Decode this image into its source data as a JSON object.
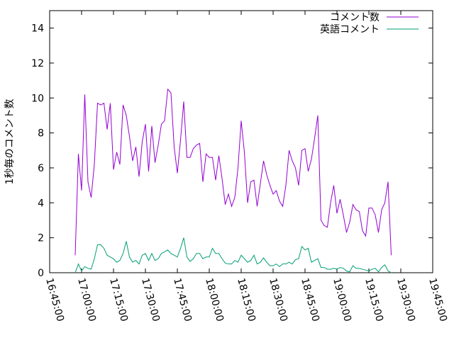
{
  "chart_data": {
    "type": "line",
    "title": "",
    "xlabel": "",
    "ylabel": "1秒毎のコメント数",
    "ylim": [
      0,
      15
    ],
    "yticks": [
      0,
      2,
      4,
      6,
      8,
      10,
      12,
      14
    ],
    "xlim": [
      "16:45:00",
      "19:45:00"
    ],
    "xticks": [
      "16:45:00",
      "17:00:00",
      "17:15:00",
      "17:30:00",
      "17:45:00",
      "18:00:00",
      "18:15:00",
      "18:30:00",
      "18:45:00",
      "19:00:00",
      "19:15:00",
      "19:30:00",
      "19:45:00"
    ],
    "grid": false,
    "legend_position": "top-right",
    "x_interval_minutes": 1.5,
    "x_start": "16:57:00",
    "series": [
      {
        "name": "コメント数",
        "color": "#9400d3",
        "values": [
          1.0,
          6.8,
          4.7,
          10.2,
          5.2,
          4.3,
          6.2,
          9.7,
          9.6,
          9.7,
          8.2,
          9.7,
          5.9,
          6.9,
          6.2,
          9.6,
          9.0,
          7.8,
          6.4,
          7.2,
          5.5,
          7.5,
          8.5,
          5.8,
          8.4,
          6.3,
          7.3,
          8.5,
          8.7,
          10.5,
          10.3,
          7.2,
          5.7,
          7.6,
          9.8,
          6.6,
          6.6,
          7.1,
          7.3,
          7.4,
          5.2,
          6.8,
          6.6,
          6.6,
          5.3,
          6.7,
          5.4,
          3.9,
          4.5,
          3.8,
          4.3,
          6.0,
          8.7,
          6.9,
          4.0,
          5.2,
          5.3,
          3.8,
          5.1,
          6.4,
          5.6,
          5.0,
          4.5,
          4.7,
          4.1,
          3.8,
          5.0,
          7.0,
          6.4,
          6.0,
          5.0,
          7.0,
          7.1,
          5.8,
          6.5,
          7.7,
          9.0,
          3.0,
          2.7,
          2.6,
          4.0,
          5.0,
          3.4,
          4.2,
          3.3,
          2.3,
          2.9,
          3.9,
          3.6,
          3.5,
          2.4,
          2.1,
          3.7,
          3.7,
          3.3,
          2.3,
          3.6,
          4.0,
          5.2,
          1.0
        ]
      },
      {
        "name": "英語コメント",
        "color": "#009e73",
        "values": [
          0.0,
          0.5,
          0.1,
          0.35,
          0.25,
          0.2,
          0.8,
          1.6,
          1.6,
          1.4,
          1.0,
          0.9,
          0.8,
          0.6,
          0.7,
          1.1,
          1.8,
          0.9,
          0.6,
          0.7,
          0.5,
          1.0,
          1.1,
          0.7,
          1.1,
          0.7,
          0.8,
          1.1,
          1.2,
          1.3,
          1.1,
          1.0,
          0.9,
          1.4,
          2.0,
          0.9,
          0.65,
          0.8,
          1.1,
          1.1,
          0.8,
          0.9,
          0.9,
          1.4,
          1.1,
          1.1,
          0.8,
          0.55,
          0.5,
          0.5,
          0.7,
          0.6,
          1.0,
          0.8,
          0.6,
          0.7,
          1.0,
          0.5,
          0.6,
          0.85,
          0.6,
          0.4,
          0.4,
          0.5,
          0.35,
          0.5,
          0.5,
          0.6,
          0.5,
          0.75,
          0.8,
          1.5,
          1.3,
          1.4,
          0.6,
          0.7,
          0.8,
          0.3,
          0.3,
          0.2,
          0.2,
          0.25,
          0.2,
          0.3,
          0.25,
          0.1,
          0.05,
          0.4,
          0.25,
          0.25,
          0.2,
          0.15,
          0.1,
          0.2,
          0.25,
          0.05,
          0.3,
          0.45,
          0.1,
          0.0
        ]
      }
    ]
  }
}
